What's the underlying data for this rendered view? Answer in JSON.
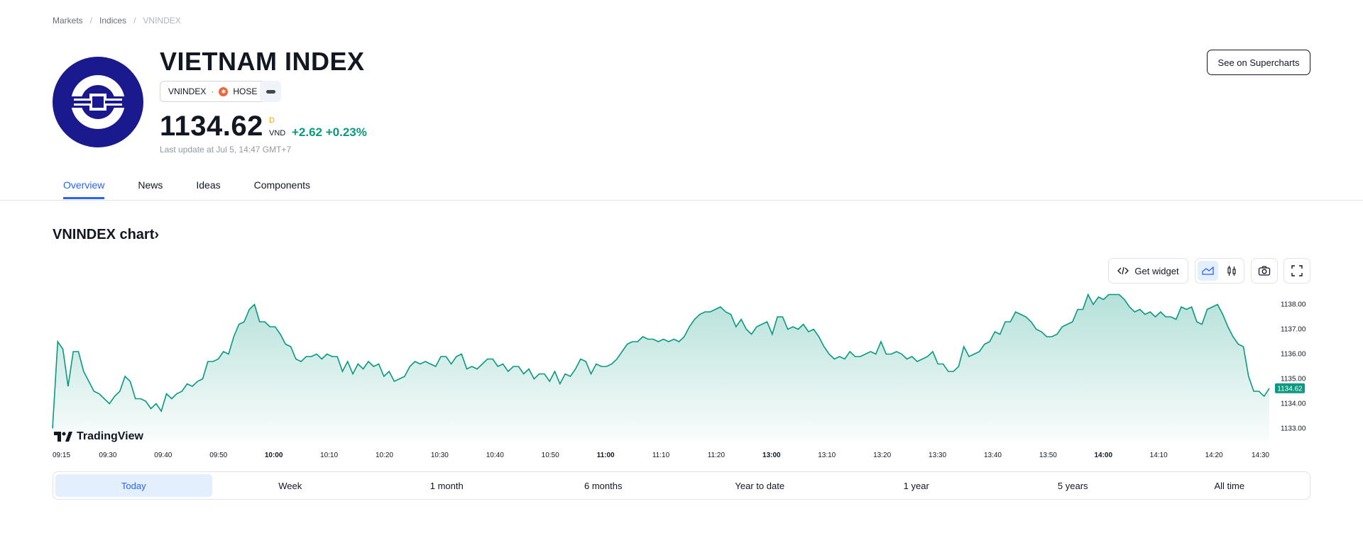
{
  "breadcrumb": [
    "Markets",
    "Indices",
    "VNINDEX"
  ],
  "instrument": {
    "name": "VIETNAM INDEX",
    "symbol": "VNINDEX",
    "exchange": "HOSE",
    "price": "1134.62",
    "price_flag": "D",
    "currency": "VND",
    "change": "+2.62",
    "change_pct": "+0.23%",
    "last_update": "Last update at Jul 5, 14:47 GMT+7"
  },
  "actions": {
    "supercharts": "See on Supercharts"
  },
  "tabs": [
    "Overview",
    "News",
    "Ideas",
    "Components"
  ],
  "chart": {
    "title": "VNINDEX chart",
    "widget_label": "Get widget",
    "brand": "TradingView"
  },
  "ranges": [
    "Today",
    "Week",
    "1 month",
    "6 months",
    "Year to date",
    "1 year",
    "5 years",
    "All time"
  ],
  "colors": {
    "accent": "#2962ff",
    "up": "#089981",
    "logo_bg": "#1a1a8e"
  },
  "chart_data": {
    "type": "area",
    "xticks": [
      "09:15",
      "09:30",
      "09:40",
      "09:50",
      "10:00",
      "10:10",
      "10:20",
      "10:30",
      "10:40",
      "10:50",
      "11:00",
      "11:10",
      "11:20",
      "13:00",
      "13:10",
      "13:20",
      "13:30",
      "13:40",
      "13:50",
      "14:00",
      "14:10",
      "14:20",
      "14:30"
    ],
    "yticks": [
      "1133.00",
      "1134.00",
      "1135.00",
      "1136.00",
      "1137.00",
      "1138.00"
    ],
    "ylim": [
      1132.5,
      1138.5
    ],
    "last_value": "1134.62",
    "series": [
      {
        "values": [
          1133.0,
          1136.5,
          1136.2,
          1134.7,
          1136.1,
          1136.1,
          1135.3,
          1134.9,
          1134.5,
          1134.4,
          1134.2,
          1134.0,
          1134.3,
          1134.5,
          1135.1,
          1134.9,
          1134.2,
          1134.2,
          1134.1,
          1133.8,
          1134.0,
          1133.7,
          1134.4,
          1134.2,
          1134.4,
          1134.5,
          1134.8,
          1134.7,
          1134.9,
          1135.0,
          1135.7,
          1135.7,
          1135.8,
          1136.1,
          1136.0,
          1136.7,
          1137.2,
          1137.3,
          1137.8,
          1138.0,
          1137.3,
          1137.3,
          1137.1,
          1137.1,
          1136.8,
          1136.4,
          1136.3,
          1135.8,
          1135.7,
          1135.9,
          1135.9,
          1136.0,
          1135.8,
          1136.0,
          1135.9,
          1135.9,
          1135.3,
          1135.7,
          1135.2,
          1135.6,
          1135.4,
          1135.7,
          1135.5,
          1135.6,
          1135.1,
          1135.3,
          1134.9,
          1135.0,
          1135.1,
          1135.5,
          1135.7,
          1135.6,
          1135.7,
          1135.6,
          1135.5,
          1135.9,
          1135.9,
          1135.6,
          1135.9,
          1136.0,
          1135.4,
          1135.5,
          1135.4,
          1135.6,
          1135.8,
          1135.8,
          1135.5,
          1135.6,
          1135.3,
          1135.5,
          1135.5,
          1135.2,
          1135.4,
          1135.0,
          1135.2,
          1135.2,
          1134.9,
          1135.3,
          1134.8,
          1135.2,
          1135.1,
          1135.4,
          1135.8,
          1135.7,
          1135.2,
          1135.6,
          1135.5,
          1135.5,
          1135.6,
          1135.8,
          1136.1,
          1136.4,
          1136.5,
          1136.5,
          1136.7,
          1136.6,
          1136.6,
          1136.5,
          1136.6,
          1136.5,
          1136.6,
          1136.5,
          1136.7,
          1137.1,
          1137.4,
          1137.6,
          1137.7,
          1137.7,
          1137.8,
          1137.9,
          1137.7,
          1137.6,
          1137.1,
          1137.4,
          1137.0,
          1136.8,
          1137.1,
          1137.2,
          1137.3,
          1136.8,
          1137.5,
          1137.5,
          1137.0,
          1137.1,
          1137.0,
          1137.2,
          1136.9,
          1137.0,
          1136.7,
          1136.3,
          1136.0,
          1135.8,
          1135.9,
          1135.8,
          1136.1,
          1135.9,
          1135.9,
          1136.0,
          1136.1,
          1136.0,
          1136.5,
          1136.0,
          1136.0,
          1136.1,
          1136.0,
          1135.8,
          1135.9,
          1135.7,
          1135.8,
          1135.9,
          1136.1,
          1135.6,
          1135.6,
          1135.3,
          1135.3,
          1135.5,
          1136.3,
          1135.9,
          1136.0,
          1136.1,
          1136.4,
          1136.5,
          1136.9,
          1136.8,
          1137.3,
          1137.3,
          1137.7,
          1137.6,
          1137.5,
          1137.3,
          1137.0,
          1136.9,
          1136.7,
          1136.7,
          1136.8,
          1137.1,
          1137.2,
          1137.3,
          1137.8,
          1137.8,
          1138.4,
          1138.0,
          1138.3,
          1138.2,
          1138.4,
          1138.4,
          1138.4,
          1138.2,
          1137.9,
          1137.7,
          1137.8,
          1137.6,
          1137.7,
          1137.5,
          1137.7,
          1137.5,
          1137.5,
          1137.4,
          1137.9,
          1137.8,
          1137.9,
          1137.3,
          1137.2,
          1137.8,
          1137.9,
          1138.0,
          1137.6,
          1137.1,
          1136.7,
          1136.4,
          1136.3,
          1135.1,
          1134.5,
          1134.5,
          1134.3,
          1134.62
        ]
      }
    ]
  }
}
